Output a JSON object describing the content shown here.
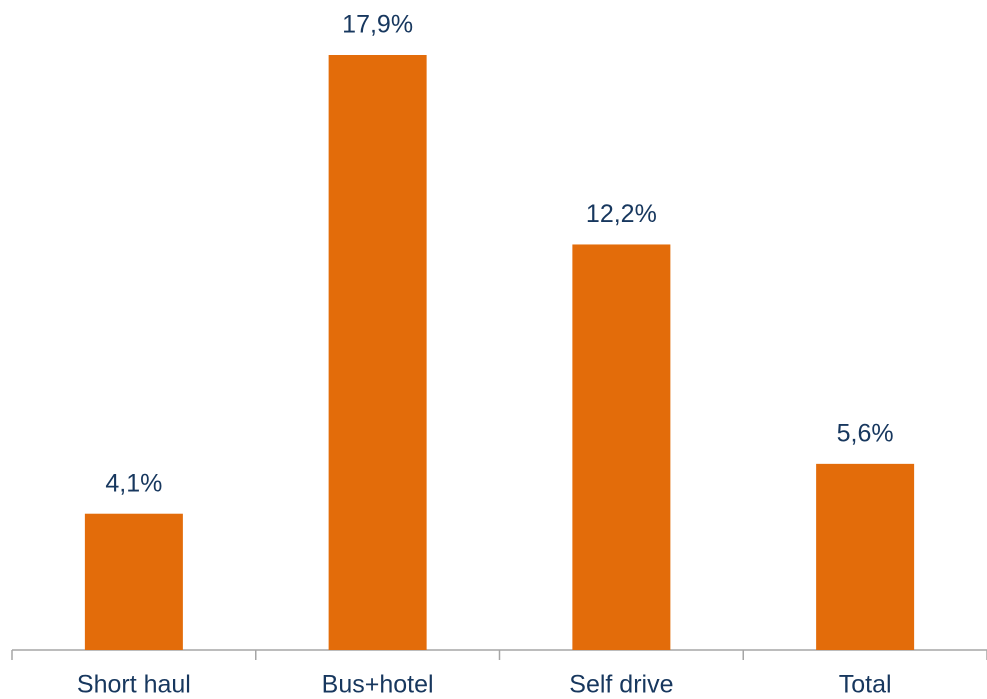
{
  "chart_data": {
    "type": "bar",
    "categories": [
      "Short haul",
      "Bus+hotel",
      "Self drive",
      "Total"
    ],
    "values": [
      4.1,
      17.9,
      12.2,
      5.6
    ],
    "value_labels": [
      "4,1%",
      "17,9%",
      "12,2%",
      "5,6%"
    ],
    "color": "#e36c0a"
  }
}
